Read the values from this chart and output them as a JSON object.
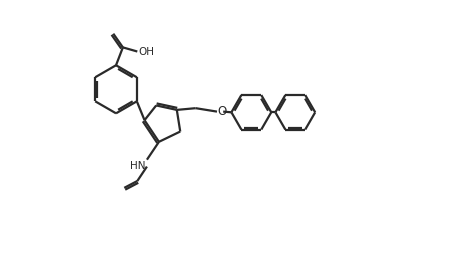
{
  "background_color": "#ffffff",
  "line_color": "#2a2a2a",
  "line_width": 1.6,
  "figure_width": 4.69,
  "figure_height": 2.61,
  "dpi": 100,
  "xlim": [
    0,
    10.0
  ],
  "ylim": [
    -1.8,
    5.8
  ]
}
